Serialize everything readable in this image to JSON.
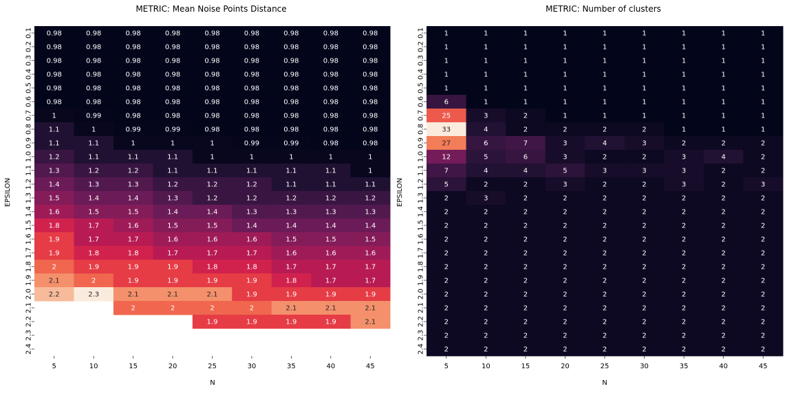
{
  "chart_data": [
    {
      "type": "heatmap",
      "title": "METRIC: Mean Noise Points Distance",
      "xlabel": "N",
      "ylabel": "EPSILON",
      "x_categories": [
        "5",
        "10",
        "15",
        "20",
        "25",
        "30",
        "35",
        "40",
        "45"
      ],
      "y_categories": [
        "0.1",
        "0.2",
        "0.3",
        "0.4",
        "0.5",
        "0.6",
        "0.7",
        "0.8",
        "0.9",
        "1.0",
        "1.1",
        "1.2",
        "1.3",
        "1.4",
        "1.5",
        "1.6",
        "1.7",
        "1.8",
        "1.9",
        "2.0",
        "2.1",
        "2.2",
        "2.3",
        "2.4"
      ],
      "value_range": [
        0.98,
        2.3
      ],
      "values": [
        [
          0.98,
          0.98,
          0.98,
          0.98,
          0.98,
          0.98,
          0.98,
          0.98,
          0.98
        ],
        [
          0.98,
          0.98,
          0.98,
          0.98,
          0.98,
          0.98,
          0.98,
          0.98,
          0.98
        ],
        [
          0.98,
          0.98,
          0.98,
          0.98,
          0.98,
          0.98,
          0.98,
          0.98,
          0.98
        ],
        [
          0.98,
          0.98,
          0.98,
          0.98,
          0.98,
          0.98,
          0.98,
          0.98,
          0.98
        ],
        [
          0.98,
          0.98,
          0.98,
          0.98,
          0.98,
          0.98,
          0.98,
          0.98,
          0.98
        ],
        [
          0.98,
          0.98,
          0.98,
          0.98,
          0.98,
          0.98,
          0.98,
          0.98,
          0.98
        ],
        [
          1,
          0.99,
          0.98,
          0.98,
          0.98,
          0.98,
          0.98,
          0.98,
          0.98
        ],
        [
          1.1,
          1,
          0.99,
          0.99,
          0.98,
          0.98,
          0.98,
          0.98,
          0.98
        ],
        [
          1.1,
          1.1,
          1,
          1,
          1,
          0.99,
          0.99,
          0.98,
          0.98
        ],
        [
          1.2,
          1.1,
          1.1,
          1.1,
          1,
          1,
          1,
          1,
          1
        ],
        [
          1.3,
          1.2,
          1.2,
          1.1,
          1.1,
          1.1,
          1.1,
          1.1,
          1
        ],
        [
          1.4,
          1.3,
          1.3,
          1.2,
          1.2,
          1.2,
          1.1,
          1.1,
          1.1
        ],
        [
          1.5,
          1.4,
          1.4,
          1.3,
          1.2,
          1.2,
          1.2,
          1.2,
          1.2
        ],
        [
          1.6,
          1.5,
          1.5,
          1.4,
          1.4,
          1.3,
          1.3,
          1.3,
          1.3
        ],
        [
          1.8,
          1.7,
          1.6,
          1.5,
          1.5,
          1.4,
          1.4,
          1.4,
          1.4
        ],
        [
          1.9,
          1.7,
          1.7,
          1.6,
          1.6,
          1.6,
          1.5,
          1.5,
          1.5
        ],
        [
          1.9,
          1.8,
          1.8,
          1.7,
          1.7,
          1.7,
          1.6,
          1.6,
          1.6
        ],
        [
          2,
          1.9,
          1.9,
          1.9,
          1.8,
          1.8,
          1.7,
          1.7,
          1.7
        ],
        [
          2.1,
          2,
          1.9,
          1.9,
          1.9,
          1.9,
          1.8,
          1.7,
          1.7
        ],
        [
          2.2,
          2.3,
          2.1,
          2.1,
          2.1,
          1.9,
          1.9,
          1.9,
          1.9
        ],
        [
          null,
          null,
          2,
          2,
          2,
          2,
          2.1,
          2.1,
          2.1
        ],
        [
          null,
          null,
          null,
          null,
          1.9,
          1.9,
          1.9,
          1.9,
          2.1
        ],
        [
          null,
          null,
          null,
          null,
          null,
          null,
          null,
          null,
          null
        ],
        [
          null,
          null,
          null,
          null,
          null,
          null,
          null,
          null,
          null
        ]
      ]
    },
    {
      "type": "heatmap",
      "title": "METRIC: Number of clusters",
      "xlabel": "N",
      "ylabel": "EPSILON",
      "x_categories": [
        "5",
        "10",
        "15",
        "20",
        "25",
        "30",
        "35",
        "40",
        "45"
      ],
      "y_categories": [
        "0.1",
        "0.2",
        "0.3",
        "0.4",
        "0.5",
        "0.6",
        "0.7",
        "0.8",
        "0.9",
        "1.0",
        "1.1",
        "1.2",
        "1.3",
        "1.4",
        "1.5",
        "1.6",
        "1.7",
        "1.8",
        "1.9",
        "2.0",
        "2.1",
        "2.2",
        "2.3",
        "2.4"
      ],
      "value_range": [
        1,
        33
      ],
      "values": [
        [
          1,
          1,
          1,
          1,
          1,
          1,
          1,
          1,
          1
        ],
        [
          1,
          1,
          1,
          1,
          1,
          1,
          1,
          1,
          1
        ],
        [
          1,
          1,
          1,
          1,
          1,
          1,
          1,
          1,
          1
        ],
        [
          1,
          1,
          1,
          1,
          1,
          1,
          1,
          1,
          1
        ],
        [
          1,
          1,
          1,
          1,
          1,
          1,
          1,
          1,
          1
        ],
        [
          6,
          1,
          1,
          1,
          1,
          1,
          1,
          1,
          1
        ],
        [
          25,
          3,
          2,
          1,
          1,
          1,
          1,
          1,
          1
        ],
        [
          33,
          4,
          2,
          2,
          2,
          2,
          1,
          1,
          1
        ],
        [
          27,
          6,
          7,
          3,
          4,
          3,
          2,
          2,
          2
        ],
        [
          12,
          5,
          6,
          3,
          2,
          2,
          3,
          4,
          2
        ],
        [
          7,
          4,
          4,
          5,
          3,
          3,
          3,
          2,
          2
        ],
        [
          5,
          2,
          2,
          3,
          2,
          2,
          3,
          2,
          3
        ],
        [
          2,
          3,
          2,
          2,
          2,
          2,
          2,
          2,
          2
        ],
        [
          2,
          2,
          2,
          2,
          2,
          2,
          2,
          2,
          2
        ],
        [
          2,
          2,
          2,
          2,
          2,
          2,
          2,
          2,
          2
        ],
        [
          2,
          2,
          2,
          2,
          2,
          2,
          2,
          2,
          2
        ],
        [
          2,
          2,
          2,
          2,
          2,
          2,
          2,
          2,
          2
        ],
        [
          2,
          2,
          2,
          2,
          2,
          2,
          2,
          2,
          2
        ],
        [
          2,
          2,
          2,
          2,
          2,
          2,
          2,
          2,
          2
        ],
        [
          2,
          2,
          2,
          2,
          2,
          2,
          2,
          2,
          2
        ],
        [
          2,
          2,
          2,
          2,
          2,
          2,
          2,
          2,
          2
        ],
        [
          2,
          2,
          2,
          2,
          2,
          2,
          2,
          2,
          2
        ],
        [
          2,
          2,
          2,
          2,
          2,
          2,
          2,
          2,
          2
        ],
        [
          2,
          2,
          2,
          2,
          2,
          2,
          2,
          2,
          2
        ]
      ]
    }
  ]
}
